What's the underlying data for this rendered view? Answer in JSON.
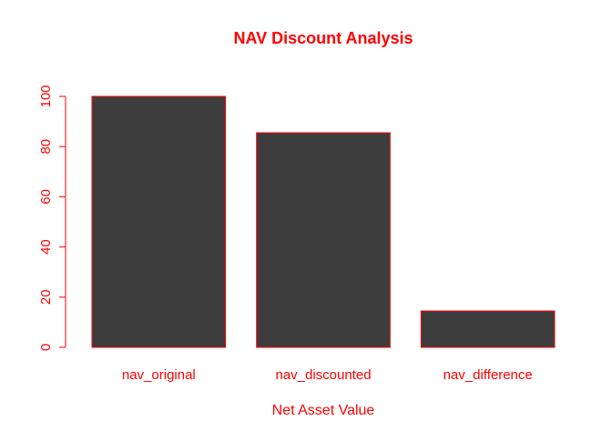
{
  "chart_data": {
    "type": "bar",
    "title": "NAV Discount Analysis",
    "xlabel": "Net Asset Value",
    "ylabel": "",
    "categories": [
      "nav_original",
      "nav_discounted",
      "nav_difference"
    ],
    "values": [
      100,
      85.5,
      14.5
    ],
    "ylim": [
      0,
      100
    ],
    "yticks": [
      "0",
      "20",
      "40",
      "60",
      "80",
      "100"
    ],
    "grid": false,
    "legend": "none",
    "colors": {
      "bar_fill": "#3d3d3d",
      "bar_border": "#ff0000",
      "text": "#ff0000",
      "axis": "#ff0000",
      "background": "#ffffff"
    }
  }
}
